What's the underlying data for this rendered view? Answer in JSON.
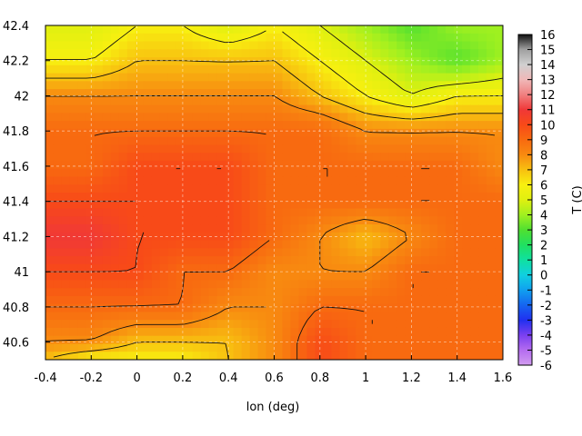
{
  "chart_data": {
    "type": "heatmap",
    "xlabel": "lon (deg)",
    "ylabel": "",
    "colorbar_label": "T (C)",
    "xlim": [
      -0.4,
      1.6
    ],
    "ylim": [
      40.5,
      42.4
    ],
    "x_ticks": [
      "-0.4",
      "-0.2",
      "0",
      "0.2",
      "0.4",
      "0.6",
      "0.8",
      "1",
      "1.2",
      "1.4",
      "1.6"
    ],
    "y_ticks": [
      "40.6",
      "40.8",
      "41",
      "41.2",
      "41.4",
      "41.6",
      "41.8",
      "42",
      "42.2",
      "42.4"
    ],
    "colorbar_ticks": [
      "16",
      "15",
      "14",
      "13",
      "12",
      "11",
      "10",
      "9",
      "8",
      "7",
      "6",
      "5",
      "4",
      "3",
      "2",
      "1",
      "0",
      "-1",
      "-2",
      "-3",
      "-4",
      "-5",
      "-6"
    ],
    "colorbar_range": [
      -6,
      16
    ],
    "grid": true,
    "contour_lines": true,
    "field": {
      "x": [
        -0.4,
        -0.2,
        0.0,
        0.2,
        0.4,
        0.6,
        0.8,
        1.0,
        1.2,
        1.4,
        1.6
      ],
      "y": [
        42.4,
        42.2,
        42.0,
        41.8,
        41.6,
        41.4,
        41.2,
        41.0,
        40.8,
        40.6,
        40.5
      ],
      "values": [
        [
          5,
          5,
          6,
          6,
          5,
          6,
          5,
          4,
          3,
          4,
          4
        ],
        [
          6,
          6,
          7,
          7,
          7,
          7,
          6,
          5,
          4,
          3,
          4
        ],
        [
          8,
          8,
          8,
          8,
          8,
          8,
          7,
          6,
          5,
          6,
          6
        ],
        [
          9,
          9,
          9,
          9,
          9,
          9,
          9,
          8,
          8,
          8,
          8
        ],
        [
          9,
          9,
          10,
          10,
          10,
          9,
          9,
          9,
          9,
          9,
          8
        ],
        [
          10,
          10,
          10,
          10,
          10,
          9,
          9,
          9,
          9,
          9,
          9
        ],
        [
          11,
          11,
          10,
          10,
          10,
          9,
          8,
          7,
          8,
          9,
          9
        ],
        [
          10,
          10,
          10,
          9,
          9,
          8,
          8,
          8,
          9,
          9,
          9
        ],
        [
          9,
          9,
          9,
          9,
          8,
          8,
          9,
          9,
          9,
          9,
          9
        ],
        [
          8,
          8,
          7,
          7,
          7,
          8,
          10,
          9,
          9,
          9,
          9
        ],
        [
          7,
          6,
          6,
          6,
          7,
          8,
          10,
          9,
          9,
          9,
          9
        ]
      ]
    }
  },
  "colorscale": [
    [
      -6,
      "#d29cf0"
    ],
    [
      -5,
      "#b46cf0"
    ],
    [
      -4,
      "#7a3ff0"
    ],
    [
      -3,
      "#2030f0"
    ],
    [
      -2,
      "#1565f0"
    ],
    [
      -1,
      "#10a0f0"
    ],
    [
      0,
      "#10d0e0"
    ],
    [
      1,
      "#10e0a0"
    ],
    [
      2,
      "#20e060"
    ],
    [
      3,
      "#50e030"
    ],
    [
      4,
      "#a0f020"
    ],
    [
      5,
      "#e0f010"
    ],
    [
      6,
      "#f8f010"
    ],
    [
      7,
      "#f8c010"
    ],
    [
      8,
      "#f88a10"
    ],
    [
      9,
      "#f86a10"
    ],
    [
      10,
      "#f84a18"
    ],
    [
      11,
      "#f03838"
    ],
    [
      12,
      "#f08080"
    ],
    [
      13,
      "#f0b8b8"
    ],
    [
      14,
      "#d0d0d0"
    ],
    [
      15,
      "#a0a0a0"
    ],
    [
      16,
      "#101010"
    ]
  ]
}
